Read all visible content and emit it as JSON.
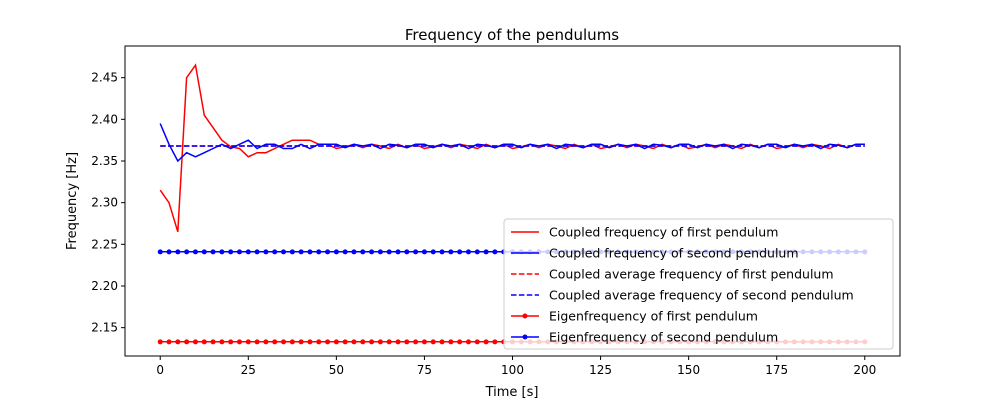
{
  "chart_data": {
    "type": "line",
    "title": "Frequency of the pendulums",
    "xlabel": "Time [s]",
    "ylabel": "Frequency [Hz]",
    "xlim": [
      -10,
      210
    ],
    "ylim": [
      2.116,
      2.488
    ],
    "xticks": [
      0,
      25,
      50,
      75,
      100,
      125,
      150,
      175,
      200
    ],
    "yticks": [
      2.15,
      2.2,
      2.25,
      2.3,
      2.35,
      2.4,
      2.45
    ],
    "ytick_labels": [
      "2.15",
      "2.20",
      "2.25",
      "2.30",
      "2.35",
      "2.40",
      "2.45"
    ],
    "grid": false,
    "legend_placement": "lower-right",
    "x_start": 0,
    "x_step": 2.5,
    "series": [
      {
        "name": "Coupled frequency of first pendulum",
        "color": "#ff0000",
        "style": "solid",
        "marker": false,
        "values": [
          2.315,
          2.3,
          2.265,
          2.45,
          2.465,
          2.405,
          2.39,
          2.375,
          2.367,
          2.365,
          2.355,
          2.36,
          2.36,
          2.365,
          2.37,
          2.375,
          2.375,
          2.375,
          2.37,
          2.37,
          2.365,
          2.367,
          2.37,
          2.366,
          2.37,
          2.368,
          2.365,
          2.37,
          2.366,
          2.37,
          2.365,
          2.367,
          2.37,
          2.366,
          2.37,
          2.368,
          2.365,
          2.37,
          2.366,
          2.37,
          2.365,
          2.367,
          2.37,
          2.366,
          2.37,
          2.368,
          2.365,
          2.37,
          2.366,
          2.37,
          2.365,
          2.367,
          2.37,
          2.366,
          2.37,
          2.368,
          2.365,
          2.37,
          2.366,
          2.37,
          2.365,
          2.367,
          2.37,
          2.366,
          2.37,
          2.368,
          2.365,
          2.37,
          2.366,
          2.37,
          2.365,
          2.367,
          2.37,
          2.366,
          2.37,
          2.368,
          2.365,
          2.37,
          2.366,
          2.37,
          2.37
        ]
      },
      {
        "name": "Coupled frequency of second pendulum",
        "color": "#0000ff",
        "style": "solid",
        "marker": false,
        "values": [
          2.395,
          2.37,
          2.35,
          2.36,
          2.355,
          2.36,
          2.365,
          2.37,
          2.365,
          2.37,
          2.375,
          2.365,
          2.37,
          2.37,
          2.365,
          2.365,
          2.37,
          2.365,
          2.37,
          2.37,
          2.37,
          2.366,
          2.37,
          2.368,
          2.37,
          2.365,
          2.37,
          2.369,
          2.366,
          2.37,
          2.37,
          2.366,
          2.37,
          2.368,
          2.37,
          2.365,
          2.37,
          2.369,
          2.366,
          2.37,
          2.37,
          2.366,
          2.37,
          2.368,
          2.37,
          2.365,
          2.37,
          2.369,
          2.366,
          2.37,
          2.37,
          2.366,
          2.37,
          2.368,
          2.37,
          2.365,
          2.37,
          2.369,
          2.366,
          2.37,
          2.37,
          2.366,
          2.37,
          2.368,
          2.37,
          2.365,
          2.37,
          2.369,
          2.366,
          2.37,
          2.37,
          2.366,
          2.37,
          2.368,
          2.37,
          2.365,
          2.37,
          2.369,
          2.366,
          2.37,
          2.37
        ]
      },
      {
        "name": "Coupled average frequency of first pendulum",
        "color": "#ff0000",
        "style": "dashed",
        "marker": false,
        "constant": 2.368
      },
      {
        "name": "Coupled average frequency of second pendulum",
        "color": "#0000ff",
        "style": "dashed",
        "marker": false,
        "constant": 2.368
      },
      {
        "name": "Eigenfrequency of first pendulum",
        "color": "#ff0000",
        "style": "solid",
        "marker": true,
        "constant": 2.133
      },
      {
        "name": "Eigenfrequency of second pendulum",
        "color": "#0000ff",
        "style": "solid",
        "marker": true,
        "constant": 2.241
      }
    ]
  }
}
